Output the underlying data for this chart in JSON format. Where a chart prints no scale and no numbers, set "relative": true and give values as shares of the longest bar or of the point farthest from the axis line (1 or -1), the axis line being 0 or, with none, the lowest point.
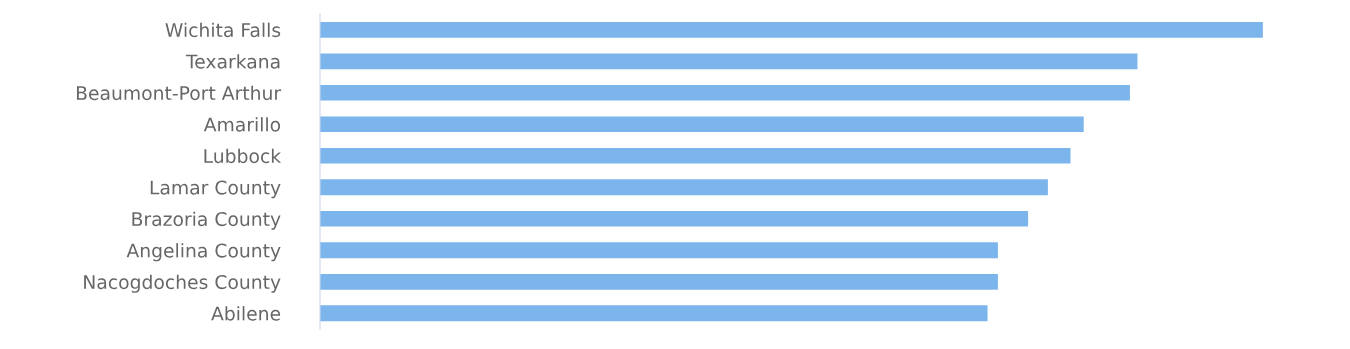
{
  "chart_data": {
    "type": "bar",
    "orientation": "horizontal",
    "relative": true,
    "categories": [
      "Wichita Falls",
      "Texarkana",
      "Beaumont-Port Arthur",
      "Amarillo",
      "Lubbock",
      "Lamar County",
      "Brazoria County",
      "Angelina County",
      "Nacogdoches County",
      "Abilene"
    ],
    "values": [
      1,
      0.867,
      0.859,
      0.81,
      0.796,
      0.772,
      0.751,
      0.719,
      0.719,
      0.708
    ],
    "color": "#7cb5ec"
  }
}
